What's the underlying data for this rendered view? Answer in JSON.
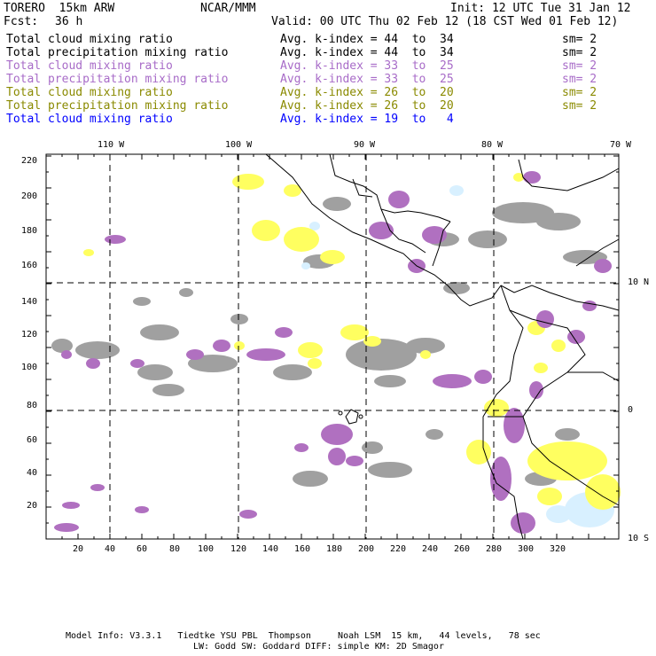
{
  "header": {
    "model": "TORERO  15km ARW",
    "center": "NCAR/MMM",
    "init": "Init: 12 UTC Tue 31 Jan 12",
    "fcst_label": "Fcst:",
    "fcst_value": "36 h",
    "valid": "Valid: 00 UTC Thu 02 Feb 12 (18 CST Wed 01 Feb 12)"
  },
  "legend": [
    {
      "field": "Total cloud mixing ratio",
      "index_label": "Avg. k-index =",
      "from": "44",
      "to_word": "to",
      "to": "34",
      "sm": "sm= 2",
      "color": "#000000"
    },
    {
      "field": "Total precipitation mixing ratio",
      "index_label": "Avg. k-index =",
      "from": "44",
      "to_word": "to",
      "to": "34",
      "sm": "sm= 2",
      "color": "#000000"
    },
    {
      "field": "Total cloud mixing ratio",
      "index_label": "Avg. k-index =",
      "from": "33",
      "to_word": "to",
      "to": "25",
      "sm": "sm= 2",
      "color": "#a86cc8"
    },
    {
      "field": "Total precipitation mixing ratio",
      "index_label": "Avg. k-index =",
      "from": "33",
      "to_word": "to",
      "to": "25",
      "sm": "sm= 2",
      "color": "#a86cc8"
    },
    {
      "field": "Total cloud mixing ratio",
      "index_label": "Avg. k-index =",
      "from": "26",
      "to_word": "to",
      "to": "20",
      "sm": "sm= 2",
      "color": "#8a8a00"
    },
    {
      "field": "Total precipitation mixing ratio",
      "index_label": "Avg. k-index =",
      "from": "26",
      "to_word": "to",
      "to": "20",
      "sm": "sm= 2",
      "color": "#8a8a00"
    },
    {
      "field": "Total cloud mixing ratio",
      "index_label": "Avg. k-index =",
      "from": "19",
      "to_word": "to",
      "to": "4",
      "sm": "",
      "color": "#0000ff"
    }
  ],
  "map": {
    "grid_x_ticks": [
      "20",
      "40",
      "60",
      "80",
      "100",
      "120",
      "140",
      "160",
      "180",
      "200",
      "220",
      "240",
      "260",
      "280",
      "300",
      "320"
    ],
    "grid_y_ticks": [
      "20",
      "40",
      "60",
      "80",
      "100",
      "120",
      "140",
      "160",
      "180",
      "200",
      "220"
    ],
    "lon_labels": [
      "110 W",
      "100 W",
      "90 W",
      "80 W",
      "70 W"
    ],
    "lat_labels": [
      "10 N",
      "0",
      "10 S"
    ],
    "colors": {
      "gray": "#a0a0a0",
      "purple": "#b070c0",
      "yellow": "#ffff60",
      "cyan": "#d8f0ff"
    }
  },
  "footer": {
    "line1": "Model Info: V3.3.1   Tiedtke YSU PBL  Thompson     Noah LSM  15 km,   44 levels,   78 sec",
    "line2": "LW: Godd SW: Goddard DIFF: simple KM: 2D Smagor"
  }
}
